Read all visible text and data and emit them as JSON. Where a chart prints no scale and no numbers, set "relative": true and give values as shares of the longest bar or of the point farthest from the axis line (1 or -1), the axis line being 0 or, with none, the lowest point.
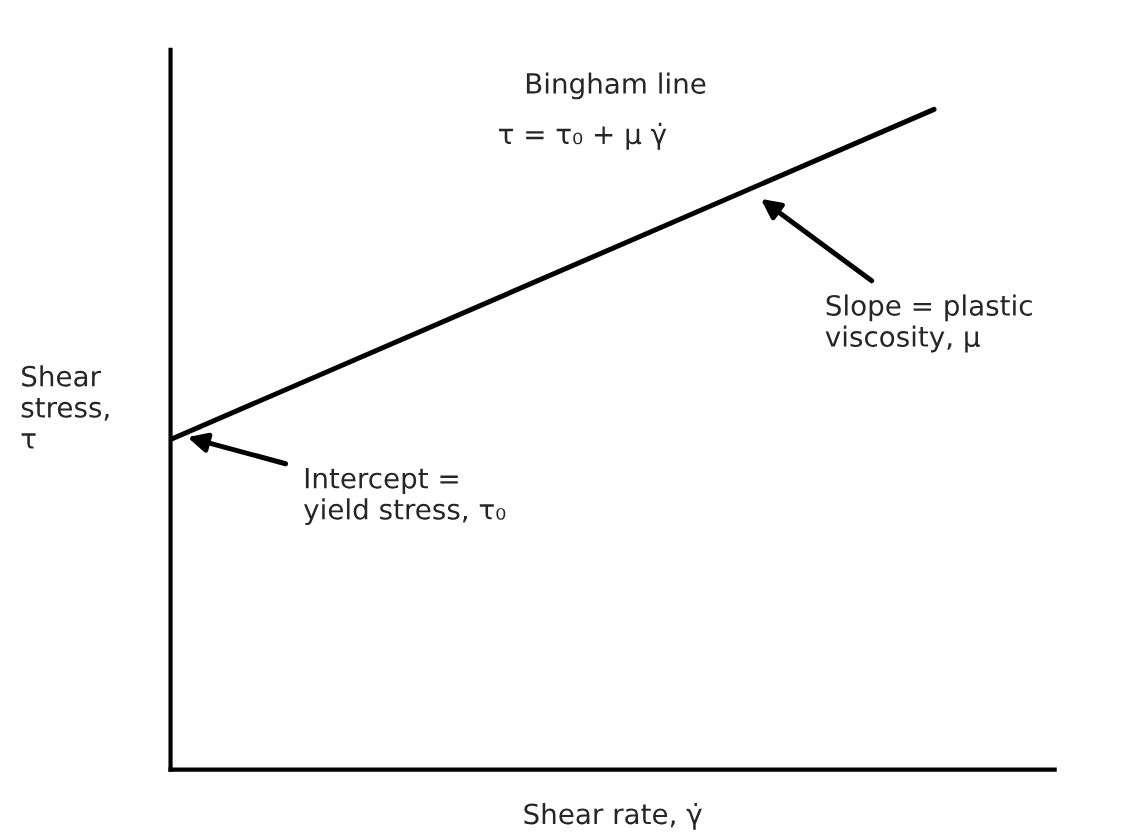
{
  "chart_data": {
    "type": "line",
    "relative": true,
    "xlabel": "Shear rate, γ̇",
    "ylabel": "Shear\nstress,\nτ",
    "categories": [
      null,
      null
    ],
    "series": [
      {
        "color": "#000000",
        "values": [
          0.5,
          1
        ]
      }
    ],
    "annotations": [
      "Bingham line",
      "τ = τ₀ + μ γ̇",
      "Slope = plastic\nviscosity, μ",
      "Intercept =\nyield stress, τ₀"
    ],
    "line_style": "solid"
  }
}
